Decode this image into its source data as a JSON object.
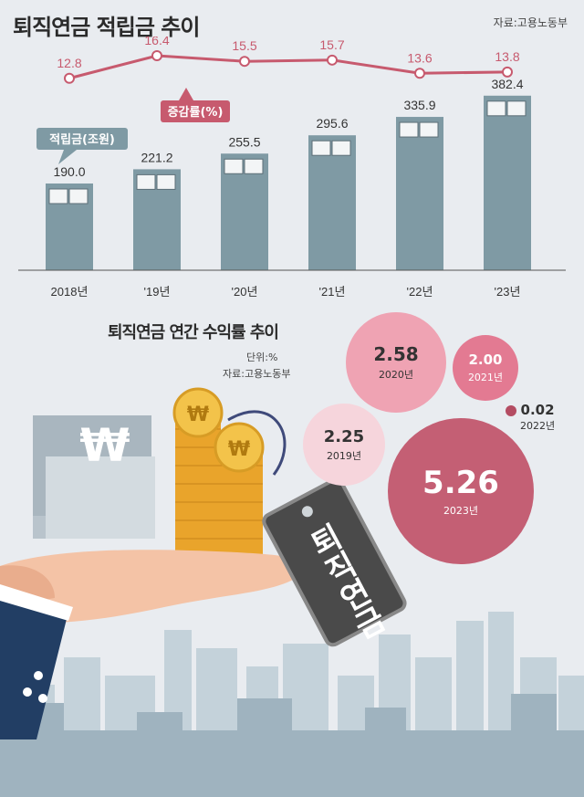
{
  "header": {
    "title": "퇴직연금 적립금 추이",
    "source": "자료:고용노동부"
  },
  "chart_data": [
    {
      "type": "bar",
      "categories": [
        "2018년",
        "'19년",
        "'20년",
        "'21년",
        "'22년",
        "'23년"
      ],
      "series": [
        {
          "name": "적립금(조원)",
          "values": [
            190.0,
            221.2,
            255.5,
            295.6,
            335.9,
            382.4
          ],
          "labels": [
            "190.0",
            "221.2",
            "255.5",
            "295.6",
            "335.9",
            "382.4"
          ],
          "color": "#7f9aa4"
        },
        {
          "name": "증감률(%)",
          "type": "line",
          "values": [
            12.8,
            16.4,
            15.5,
            15.7,
            13.6,
            13.8
          ],
          "labels": [
            "12.8",
            "16.4",
            "15.5",
            "15.7",
            "13.6",
            "13.8"
          ],
          "color": "#c75a6e"
        }
      ],
      "ylim": [
        0,
        400
      ],
      "y2lim": [
        10,
        18
      ],
      "grid": false
    },
    {
      "type": "bubble",
      "title": "퇴직연금 연간 수익률 추이",
      "unit": "단위:%",
      "source": "자료:고용노동부",
      "points": [
        {
          "year": "2019년",
          "value": 2.25,
          "label": "2.25",
          "color": "#f6d5dc"
        },
        {
          "year": "2020년",
          "value": 2.58,
          "label": "2.58",
          "color": "#efa3b3"
        },
        {
          "year": "2021년",
          "value": 2.0,
          "label": "2.00",
          "color": "#e37a92"
        },
        {
          "year": "2022년",
          "value": 0.02,
          "label": "0.02",
          "color": "#b44c62"
        },
        {
          "year": "2023년",
          "value": 5.26,
          "label": "5.26",
          "color": "#c45f74"
        }
      ]
    }
  ],
  "illustration": {
    "tag_text": "퇴직연금",
    "currency_symbol": "₩"
  }
}
